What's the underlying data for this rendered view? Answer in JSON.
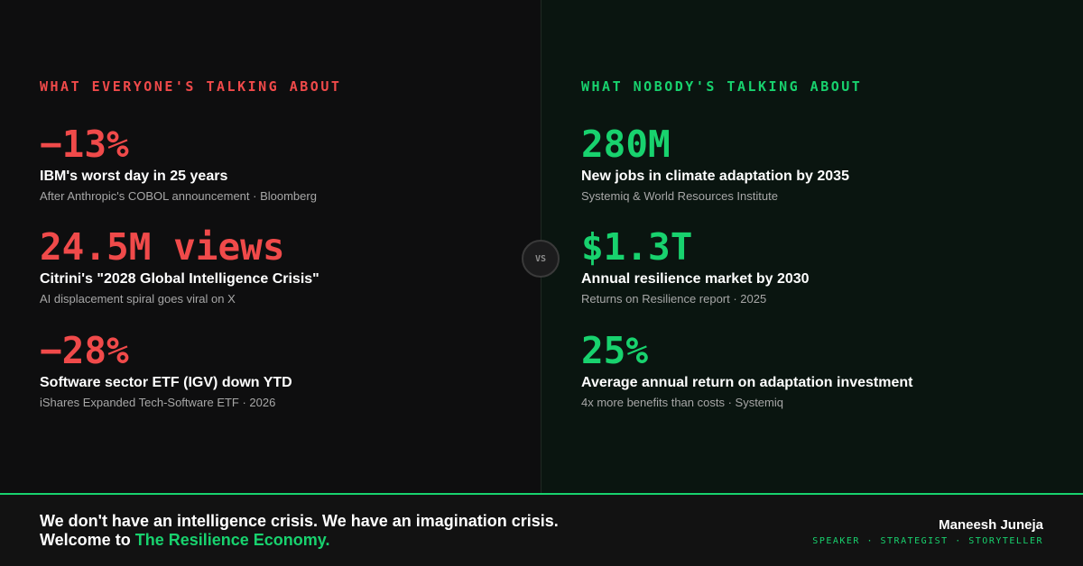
{
  "left": {
    "heading": "WHAT EVERYONE'S TALKING ABOUT",
    "stats": [
      {
        "value": "−13%",
        "label": "IBM's worst day in 25 years",
        "source": "After Anthropic's COBOL announcement · Bloomberg"
      },
      {
        "value": "24.5M views",
        "label": "Citrini's \"2028 Global Intelligence Crisis\"",
        "source": "AI displacement spiral goes viral on X"
      },
      {
        "value": "−28%",
        "label": "Software sector ETF (IGV) down YTD",
        "source": "iShares Expanded Tech-Software ETF · 2026"
      }
    ]
  },
  "right": {
    "heading": "WHAT NOBODY'S TALKING ABOUT",
    "stats": [
      {
        "value": "280M",
        "label": "New jobs in climate adaptation by 2035",
        "source": "Systemiq & World Resources Institute"
      },
      {
        "value": "$1.3T",
        "label": "Annual resilience market by 2030",
        "source": "Returns on Resilience report · 2025"
      },
      {
        "value": "25%",
        "label": "Average annual return on adaptation investment",
        "source": "4x more benefits than costs · Systemiq"
      }
    ]
  },
  "vs_label": "VS",
  "footer": {
    "line1": "We don't have an intelligence crisis. We have an imagination crisis.",
    "line2_prefix": "Welcome to ",
    "line2_highlight": "The Resilience Economy.",
    "author_name": "Maneesh Juneja",
    "author_roles": "SPEAKER · STRATEGIST · STORYTELLER"
  },
  "colors": {
    "negative_accent": "#f04a4a",
    "positive_accent": "#18d26e",
    "background": "#0e0e0f",
    "right_background": "#0a1510"
  }
}
